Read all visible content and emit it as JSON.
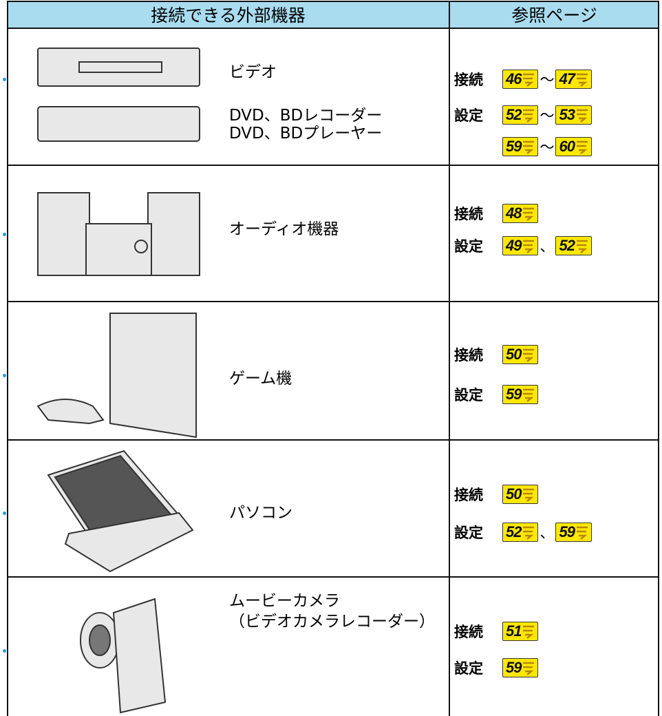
{
  "header": {
    "devices": "接続できる外部機器",
    "pages": "参照ページ"
  },
  "rows": [
    {
      "device": [
        "ビデオ",
        "DVD、BDレコーダー",
        "DVD、BDプレーヤー"
      ],
      "refs": [
        {
          "label": "接続",
          "pages": [
            "46",
            "47"
          ],
          "separators": [
            "～"
          ]
        },
        {
          "label": "設定",
          "pages": [
            "52",
            "53"
          ],
          "separators": [
            "～"
          ]
        },
        {
          "pages": [
            "59",
            "60"
          ],
          "separators": [
            "～"
          ]
        }
      ]
    },
    {
      "device": [
        "オーディオ機器"
      ],
      "refs": [
        {
          "label": "接続",
          "pages": [
            "48"
          ]
        },
        {
          "label": "設定",
          "pages": [
            "49",
            "52"
          ],
          "separators": [
            "、"
          ]
        }
      ]
    },
    {
      "device": [
        "ゲーム機"
      ],
      "refs": [
        {
          "label": "接続",
          "pages": [
            "50"
          ]
        },
        {
          "label": "設定",
          "pages": [
            "59"
          ]
        }
      ]
    },
    {
      "device": [
        "パソコン"
      ],
      "refs": [
        {
          "label": "接続",
          "pages": [
            "50"
          ]
        },
        {
          "label": "設定",
          "pages": [
            "52",
            "59"
          ],
          "separators": [
            "、"
          ]
        }
      ]
    },
    {
      "device": [
        "ムービーカメラ",
        "（ビデオカメラレコーダー）"
      ],
      "refs": [
        {
          "label": "接続",
          "pages": [
            "51"
          ]
        },
        {
          "label": "設定",
          "pages": [
            "59"
          ]
        }
      ]
    }
  ]
}
